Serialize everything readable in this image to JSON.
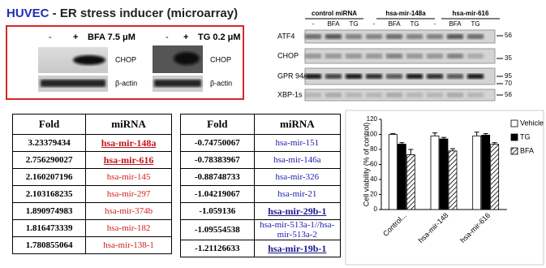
{
  "header": {
    "title_strong": "HUVEC",
    "title_rest": " - ER stress inducer (microarray)"
  },
  "blot_left": {
    "panels": [
      {
        "minus": "-",
        "plus": "+",
        "treatment": "BFA 7.5 μM",
        "bands": [
          "CHOP",
          "β-actin"
        ]
      },
      {
        "minus": "-",
        "plus": "+",
        "treatment": "TG 0.2 μM",
        "bands": [
          "CHOP",
          "β-actin"
        ]
      }
    ]
  },
  "blot_right": {
    "groups": [
      "control miRNA",
      "hsa-mir-148a",
      "hsa-mir-616"
    ],
    "lanes": [
      "-",
      "BFA",
      "TG",
      "-",
      "BFA",
      "TG",
      "-",
      "BFA",
      "TG"
    ],
    "rows": [
      "ATF4",
      "CHOP",
      "GPR 94/78",
      "XBP-1s"
    ],
    "markers": [
      "56",
      "35",
      "95",
      "70",
      "56"
    ]
  },
  "tables": [
    {
      "columns": [
        "Fold",
        "miRNA"
      ],
      "highlight": [
        0,
        1
      ],
      "rows": [
        [
          "3.23379434",
          "hsa-mir-148a"
        ],
        [
          "2.756290027",
          "hsa-mir-616"
        ],
        [
          "2.160207196",
          "hsa-mir-145"
        ],
        [
          "2.103168235",
          "hsa-mir-297"
        ],
        [
          "1.890974983",
          "hsa-mir-374b"
        ],
        [
          "1.816473339",
          "hsa-mir-182"
        ],
        [
          "1.780855064",
          "hsa-mir-138-1"
        ]
      ]
    },
    {
      "columns": [
        "Fold",
        "miRNA"
      ],
      "highlight": [
        4,
        6
      ],
      "rows": [
        [
          "-0.74750067",
          "hsa-mir-151"
        ],
        [
          "-0.78383967",
          "hsa-mir-146a"
        ],
        [
          "-0.88748733",
          "hsa-mir-326"
        ],
        [
          "-1.04219067",
          "hsa-mir-21"
        ],
        [
          "-1.059136",
          "hsa-mir-29b-1"
        ],
        [
          "-1.09554538",
          "hsa-mir-513a-1//hsa-mir-513a-2"
        ],
        [
          "-1.21126633",
          "hsa-mir-19b-1"
        ]
      ]
    }
  ],
  "chart_data": {
    "type": "bar",
    "ylabel": "Cell viability (% of control)",
    "categories": [
      "Control...",
      "hsa-mir-148",
      "hsa-mir-616"
    ],
    "series": [
      {
        "name": "Vehicle",
        "color": "#ffffff",
        "values": [
          100,
          98,
          98
        ],
        "errors": [
          1,
          4,
          5
        ]
      },
      {
        "name": "TG",
        "color": "#000000",
        "values": [
          87,
          94,
          99
        ],
        "errors": [
          2,
          2,
          2
        ]
      },
      {
        "name": "BFA",
        "color": "#ffffff",
        "pattern": "hatch",
        "values": [
          73,
          78,
          87
        ],
        "errors": [
          7,
          3,
          2
        ]
      }
    ],
    "ylim": [
      0,
      120
    ],
    "yticks": [
      0,
      20,
      40,
      60,
      80,
      100,
      120
    ]
  }
}
